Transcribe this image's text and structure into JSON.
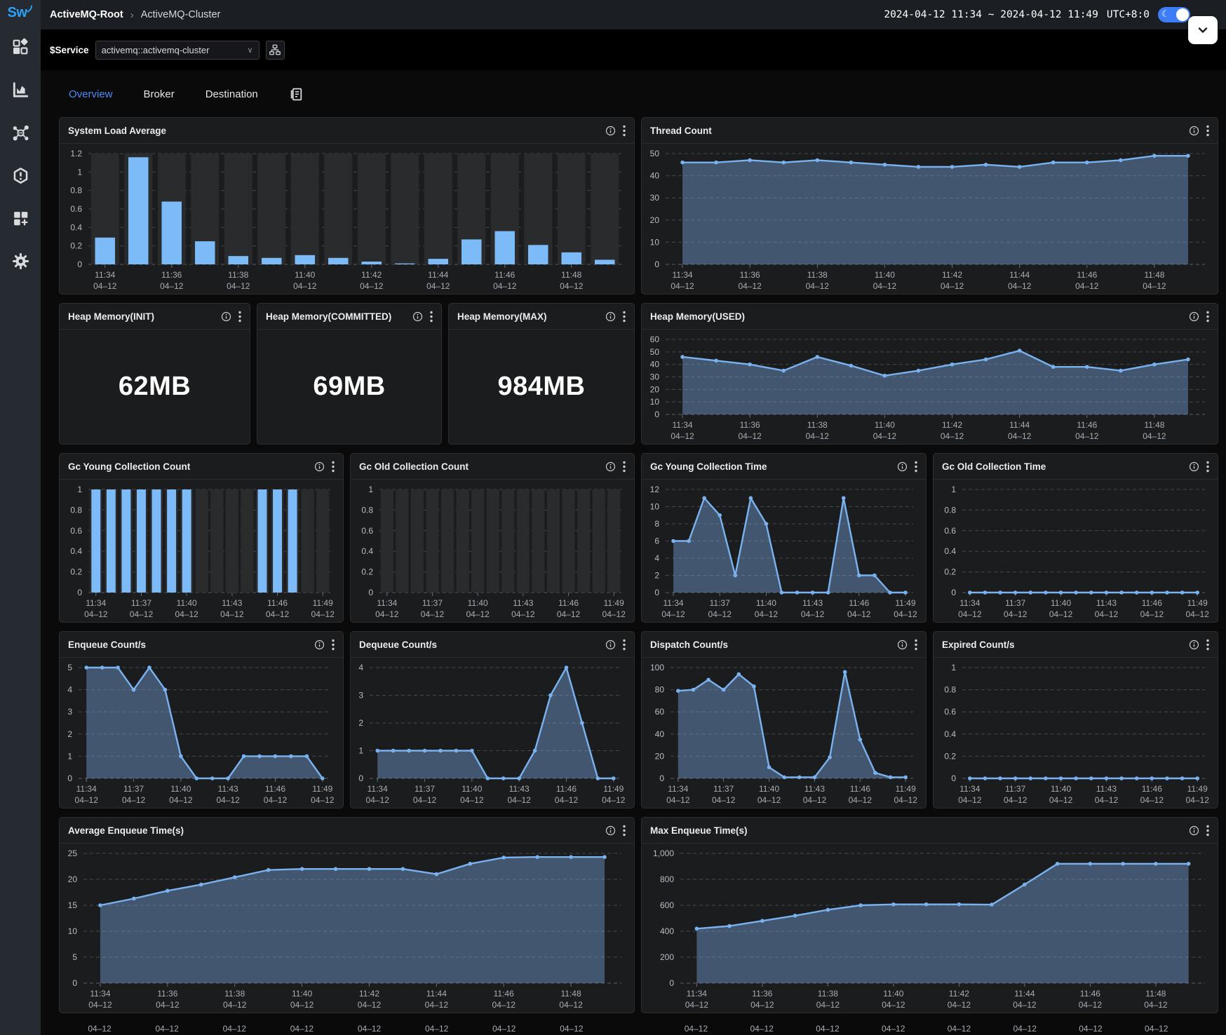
{
  "topbar": {
    "breadcrumb_root": "ActiveMQ-Root",
    "breadcrumb_current": "ActiveMQ-Cluster",
    "time_range": "2024-04-12 11:34 ~ 2024-04-12 11:49",
    "timezone": "UTC+8:0"
  },
  "service_bar": {
    "label": "$Service",
    "selected_service": "activemq::activemq-cluster",
    "view_toggle_label": "V"
  },
  "tabs": {
    "overview": "Overview",
    "broker": "Broker",
    "destination": "Destination",
    "active": "Overview"
  },
  "colors": {
    "accent_blue": "#4b8af8",
    "bar_blue": "#7dbaf8",
    "line_blue": "#7ab2f0",
    "area_fill": "rgba(122,170,225,0.42)",
    "bar_background": "#2a2b2d",
    "toggle_blue": "#3d7ef6"
  },
  "date_label": "04–12",
  "times": [
    "11:34",
    "11:35",
    "11:36",
    "11:37",
    "11:38",
    "11:39",
    "11:40",
    "11:41",
    "11:42",
    "11:43",
    "11:44",
    "11:45",
    "11:46",
    "11:47",
    "11:48",
    "11:49"
  ],
  "charts": {
    "system_load": {
      "title": "System Load Average",
      "type": "bar",
      "ymax": 1.2,
      "y_ticks": [
        0,
        0.2,
        0.4,
        0.6,
        0.8,
        1,
        1.2
      ],
      "y_tick_labels": [
        "0",
        "0.2",
        "0.4",
        "0.6",
        "0.8",
        "1",
        "1.2"
      ],
      "label_every": 2,
      "values": [
        0.29,
        1.16,
        0.68,
        0.25,
        0.09,
        0.07,
        0.1,
        0.07,
        0.03,
        0.01,
        0.06,
        0.27,
        0.36,
        0.21,
        0.13,
        0.05
      ]
    },
    "thread_count": {
      "title": "Thread Count",
      "type": "area",
      "ymax": 50,
      "y_ticks": [
        0,
        10,
        20,
        30,
        40,
        50
      ],
      "y_tick_labels": [
        "0",
        "10",
        "20",
        "30",
        "40",
        "50"
      ],
      "label_every": 2,
      "values": [
        46,
        46,
        47,
        46,
        47,
        46,
        45,
        44,
        44,
        45,
        44,
        46,
        46,
        47,
        49,
        49
      ]
    },
    "heap_init": {
      "title": "Heap Memory(INIT)",
      "type": "number",
      "value": "62MB"
    },
    "heap_committed": {
      "title": "Heap Memory(COMMITTED)",
      "type": "number",
      "value": "69MB"
    },
    "heap_max": {
      "title": "Heap Memory(MAX)",
      "type": "number",
      "value": "984MB"
    },
    "heap_used": {
      "title": "Heap Memory(USED)",
      "type": "area",
      "ymax": 60,
      "y_ticks": [
        0,
        10,
        20,
        30,
        40,
        50,
        60
      ],
      "y_tick_labels": [
        "0",
        "10",
        "20",
        "30",
        "40",
        "50",
        "60"
      ],
      "label_every": 2,
      "values": [
        46,
        43,
        40,
        35,
        46,
        39,
        31,
        35,
        40,
        44,
        51,
        38,
        38,
        35,
        40,
        44
      ]
    },
    "gc_young_count": {
      "title": "Gc Young Collection Count",
      "type": "bar",
      "ymax": 1,
      "y_ticks": [
        0,
        0.2,
        0.4,
        0.6,
        0.8,
        1
      ],
      "y_tick_labels": [
        "0",
        "0.2",
        "0.4",
        "0.6",
        "0.8",
        "1"
      ],
      "label_every": 3,
      "values": [
        1,
        1,
        1,
        1,
        1,
        1,
        1,
        0,
        0,
        0,
        0,
        1,
        1,
        1,
        0,
        0
      ]
    },
    "gc_old_count": {
      "title": "Gc Old Collection Count",
      "type": "bar",
      "ymax": 1,
      "y_ticks": [
        0,
        0.2,
        0.4,
        0.6,
        0.8,
        1
      ],
      "y_tick_labels": [
        "0",
        "0.2",
        "0.4",
        "0.6",
        "0.8",
        "1"
      ],
      "label_every": 3,
      "values": [
        0,
        0,
        0,
        0,
        0,
        0,
        0,
        0,
        0,
        0,
        0,
        0,
        0,
        0,
        0,
        0
      ]
    },
    "gc_young_time": {
      "title": "Gc Young Collection Time",
      "type": "area",
      "ymax": 12,
      "y_ticks": [
        0,
        2,
        4,
        6,
        8,
        10,
        12
      ],
      "y_tick_labels": [
        "0",
        "2",
        "4",
        "6",
        "8",
        "10",
        "12"
      ],
      "label_every": 3,
      "values": [
        6,
        6,
        11,
        9,
        2,
        11,
        8,
        0,
        0,
        0,
        0,
        11,
        2,
        2,
        0,
        0
      ]
    },
    "gc_old_time": {
      "title": "Gc Old Collection Time",
      "type": "area",
      "ymax": 1,
      "y_ticks": [
        0,
        0.2,
        0.4,
        0.6,
        0.8,
        1
      ],
      "y_tick_labels": [
        "0",
        "0.2",
        "0.4",
        "0.6",
        "0.8",
        "1"
      ],
      "label_every": 3,
      "values": [
        0,
        0,
        0,
        0,
        0,
        0,
        0,
        0,
        0,
        0,
        0,
        0,
        0,
        0,
        0,
        0
      ]
    },
    "enqueue": {
      "title": "Enqueue Count/s",
      "type": "area",
      "ymax": 5,
      "y_ticks": [
        0,
        1,
        2,
        3,
        4,
        5
      ],
      "y_tick_labels": [
        "0",
        "1",
        "2",
        "3",
        "4",
        "5"
      ],
      "label_every": 3,
      "values": [
        5,
        5,
        5,
        4,
        5,
        4,
        1,
        0,
        0,
        0,
        1,
        1,
        1,
        1,
        1,
        0
      ]
    },
    "dequeue": {
      "title": "Dequeue Count/s",
      "type": "area",
      "ymax": 4,
      "y_ticks": [
        0,
        1,
        2,
        3,
        4
      ],
      "y_tick_labels": [
        "0",
        "1",
        "2",
        "3",
        "4"
      ],
      "label_every": 3,
      "values": [
        1,
        1,
        1,
        1,
        1,
        1,
        1,
        0,
        0,
        0,
        1,
        3,
        4,
        2,
        0,
        0
      ]
    },
    "dispatch": {
      "title": "Dispatch Count/s",
      "type": "area",
      "ymax": 100,
      "y_ticks": [
        0,
        20,
        40,
        60,
        80,
        100
      ],
      "y_tick_labels": [
        "0",
        "20",
        "40",
        "60",
        "80",
        "100"
      ],
      "label_every": 3,
      "values": [
        79,
        80,
        89,
        80,
        94,
        83,
        10,
        1,
        1,
        1,
        19,
        96,
        35,
        5,
        1,
        1
      ]
    },
    "expired": {
      "title": "Expired Count/s",
      "type": "area",
      "ymax": 1,
      "y_ticks": [
        0,
        0.2,
        0.4,
        0.6,
        0.8,
        1
      ],
      "y_tick_labels": [
        "0",
        "0.2",
        "0.4",
        "0.6",
        "0.8",
        "1"
      ],
      "label_every": 3,
      "values": [
        0,
        0,
        0,
        0,
        0,
        0,
        0,
        0,
        0,
        0,
        0,
        0,
        0,
        0,
        0,
        0
      ]
    },
    "avg_enqueue_time": {
      "title": "Average Enqueue Time(s)",
      "type": "area",
      "ymax": 25,
      "y_ticks": [
        0,
        5,
        10,
        15,
        20,
        25
      ],
      "y_tick_labels": [
        "0",
        "5",
        "10",
        "15",
        "20",
        "25"
      ],
      "label_every": 2,
      "values": [
        15,
        16.3,
        17.8,
        19,
        20.4,
        21.8,
        22,
        22,
        22,
        22,
        21,
        23,
        24.2,
        24.3,
        24.3,
        24.3
      ]
    },
    "max_enqueue_time": {
      "title": "Max Enqueue Time(s)",
      "type": "area",
      "ymax": 1000,
      "y_ticks": [
        0,
        200,
        400,
        600,
        800,
        1000
      ],
      "y_tick_labels": [
        "0",
        "200",
        "400",
        "600",
        "800",
        "1,000"
      ],
      "label_every": 2,
      "values": [
        420,
        440,
        480,
        520,
        565,
        600,
        607,
        607,
        607,
        605,
        760,
        920,
        920,
        920,
        920,
        920
      ]
    },
    "partial_left": {
      "type": "xlabels",
      "y_tick_labels": [
        "25"
      ],
      "label_every": 2
    },
    "partial_right": {
      "type": "xlabels",
      "y_tick_labels": [
        "1,000"
      ],
      "label_every": 2
    }
  }
}
